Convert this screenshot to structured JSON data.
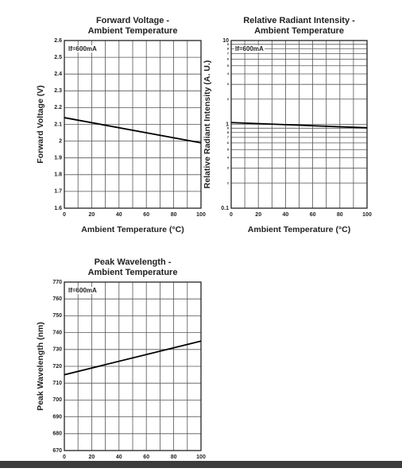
{
  "chart_data": [
    {
      "type": "line",
      "title_lines": [
        "Forward Voltage -",
        "Ambient Temperature"
      ],
      "x_label": "Ambient Temperature (°C)",
      "y_label": "Forward Voltage (V)",
      "annotation": "If=600mA",
      "x": [
        0,
        100
      ],
      "values": [
        2.14,
        1.99
      ],
      "color": "#000000",
      "xlim": [
        0,
        100
      ],
      "xticks": [
        0,
        20,
        40,
        60,
        80,
        100
      ],
      "ylim": [
        1.6,
        2.6
      ],
      "yticks": [
        1.6,
        1.7,
        1.8,
        1.9,
        2.0,
        2.1,
        2.2,
        2.3,
        2.4,
        2.5,
        2.6
      ],
      "grid": true
    },
    {
      "type": "line",
      "title_lines": [
        "Relative Radiant Intensity -",
        "Ambient Temperature"
      ],
      "x_label": "Ambient Temperature (°C)",
      "y_label": "Relative Radiant Intensity (A. U.)",
      "annotation": "If=600mA",
      "x": [
        0,
        100
      ],
      "values": [
        1.05,
        0.91
      ],
      "color": "#000000",
      "xlim": [
        0,
        100
      ],
      "xticks": [
        0,
        20,
        40,
        60,
        80,
        100
      ],
      "ylim": [
        0.1,
        10
      ],
      "log_y": true,
      "yticks": [
        0.1,
        {
          "value": 0.2,
          "label": "2"
        },
        {
          "value": 0.3,
          "label": "3"
        },
        {
          "value": 0.4,
          "label": "4"
        },
        {
          "value": 0.5,
          "label": "5"
        },
        {
          "value": 0.6,
          "label": "6"
        },
        {
          "value": 0.7,
          "label": "7"
        },
        {
          "value": 0.8,
          "label": "8"
        },
        {
          "value": 0.9,
          "label": "9"
        },
        1,
        2,
        3,
        4,
        5,
        6,
        7,
        8,
        9,
        10
      ],
      "grid": true
    },
    {
      "type": "line",
      "title_lines": [
        "Peak Wavelength -",
        "Ambient Temperature"
      ],
      "y_label": "Peak Wavelength (nm)",
      "annotation": "If=600mA",
      "x": [
        0,
        100
      ],
      "values": [
        715,
        735
      ],
      "color": "#000000",
      "xlim": [
        0,
        100
      ],
      "xticks": [
        0,
        20,
        40,
        60,
        80,
        100
      ],
      "ylim": [
        670,
        770
      ],
      "yticks": [
        670,
        680,
        690,
        700,
        710,
        720,
        730,
        740,
        750,
        760,
        770
      ],
      "grid": true
    }
  ]
}
